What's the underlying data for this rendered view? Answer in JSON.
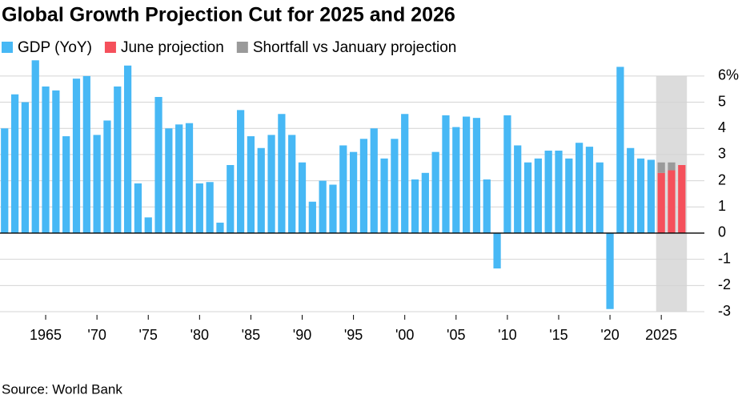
{
  "chart_data": {
    "type": "bar",
    "title": "Global Growth Projection Cut for 2025 and 2026",
    "source": "Source: World Bank",
    "x": [
      1961,
      1962,
      1963,
      1964,
      1965,
      1966,
      1967,
      1968,
      1969,
      1970,
      1971,
      1972,
      1973,
      1974,
      1975,
      1976,
      1977,
      1978,
      1979,
      1980,
      1981,
      1982,
      1983,
      1984,
      1985,
      1986,
      1987,
      1988,
      1989,
      1990,
      1991,
      1992,
      1993,
      1994,
      1995,
      1996,
      1997,
      1998,
      1999,
      2000,
      2001,
      2002,
      2003,
      2004,
      2005,
      2006,
      2007,
      2008,
      2009,
      2010,
      2011,
      2012,
      2013,
      2014,
      2015,
      2016,
      2017,
      2018,
      2019,
      2020,
      2021,
      2022,
      2023,
      2024,
      2025,
      2026,
      2027
    ],
    "series": [
      {
        "name": "GDP (YoY)",
        "color": "#47b8f5",
        "values": [
          4.0,
          5.3,
          5.0,
          6.6,
          5.6,
          5.45,
          3.7,
          5.9,
          6.0,
          3.75,
          4.3,
          5.6,
          6.4,
          1.9,
          0.6,
          5.2,
          4.0,
          4.15,
          4.2,
          1.9,
          1.95,
          0.4,
          2.6,
          4.7,
          3.7,
          3.25,
          3.75,
          4.55,
          3.75,
          2.7,
          1.2,
          2.0,
          1.85,
          3.35,
          3.1,
          3.6,
          4.0,
          2.85,
          3.6,
          4.55,
          2.05,
          2.3,
          3.1,
          4.5,
          4.05,
          4.45,
          4.4,
          2.05,
          -1.35,
          4.5,
          3.35,
          2.7,
          2.85,
          3.15,
          3.15,
          2.85,
          3.45,
          3.3,
          2.7,
          -2.9,
          6.35,
          3.25,
          2.85,
          2.8,
          null,
          null,
          null
        ]
      },
      {
        "name": "June projection",
        "color": "#f5505b",
        "values": [
          null,
          null,
          null,
          null,
          null,
          null,
          null,
          null,
          null,
          null,
          null,
          null,
          null,
          null,
          null,
          null,
          null,
          null,
          null,
          null,
          null,
          null,
          null,
          null,
          null,
          null,
          null,
          null,
          null,
          null,
          null,
          null,
          null,
          null,
          null,
          null,
          null,
          null,
          null,
          null,
          null,
          null,
          null,
          null,
          null,
          null,
          null,
          null,
          null,
          null,
          null,
          null,
          null,
          null,
          null,
          null,
          null,
          null,
          null,
          null,
          null,
          null,
          null,
          null,
          2.3,
          2.4,
          2.6
        ]
      },
      {
        "name": "Shortfall vs January projection",
        "color": "#9a9a9a",
        "values": [
          null,
          null,
          null,
          null,
          null,
          null,
          null,
          null,
          null,
          null,
          null,
          null,
          null,
          null,
          null,
          null,
          null,
          null,
          null,
          null,
          null,
          null,
          null,
          null,
          null,
          null,
          null,
          null,
          null,
          null,
          null,
          null,
          null,
          null,
          null,
          null,
          null,
          null,
          null,
          null,
          null,
          null,
          null,
          null,
          null,
          null,
          null,
          null,
          null,
          null,
          null,
          null,
          null,
          null,
          null,
          null,
          null,
          null,
          null,
          null,
          null,
          null,
          null,
          null,
          0.4,
          0.3,
          null
        ]
      }
    ],
    "xlim": [
      1960.55,
      2029.2
    ],
    "xticks": [
      1965,
      {
        "value": 1970,
        "label": "'70"
      },
      {
        "value": 1975,
        "label": "'75"
      },
      {
        "value": 1980,
        "label": "'80"
      },
      {
        "value": 1985,
        "label": "'85"
      },
      {
        "value": 1990,
        "label": "'90"
      },
      {
        "value": 1995,
        "label": "'95"
      },
      {
        "value": 2000,
        "label": "'00"
      },
      {
        "value": 2005,
        "label": "'05"
      },
      {
        "value": 2010,
        "label": "'10"
      },
      {
        "value": 2015,
        "label": "'15"
      },
      {
        "value": 2020,
        "label": "'20"
      },
      2025
    ],
    "ylim": [
      -3,
      6.7
    ],
    "yticks": [
      -3,
      -2,
      -1,
      0,
      1,
      2,
      3,
      4,
      5,
      {
        "value": 6,
        "label": "6%"
      }
    ],
    "grid": true
  }
}
